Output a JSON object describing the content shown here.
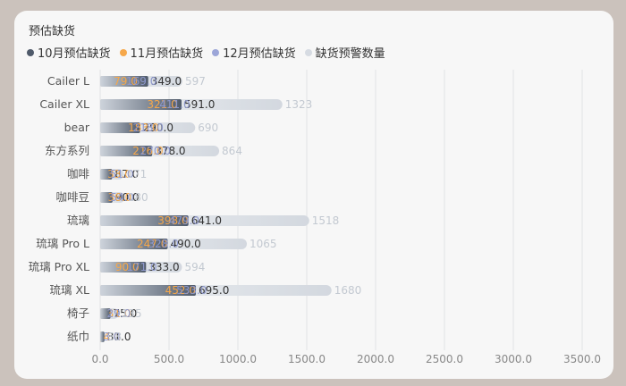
{
  "chart_data": {
    "type": "bar",
    "orientation": "horizontal",
    "title": "预估缺货",
    "categories": [
      "Cailer L",
      "Cailer XL",
      "bear",
      "东方系列",
      "咖啡",
      "咖啡豆",
      "琉璃",
      "琉璃 Pro L",
      "琉璃 Pro XL",
      "琉璃 XL",
      "椅子",
      "纸巾"
    ],
    "series": [
      {
        "name": "10月预估缺货",
        "color": "#4f5a6a",
        "values": [
          349,
          591,
          290,
          378,
          87,
          90,
          641,
          490,
          333,
          695,
          75,
          31
        ]
      },
      {
        "name": "11月预估缺货",
        "color": "#f6a84b",
        "values": [
          79,
          321,
          183,
          216,
          33,
          36,
          398,
          247,
          90,
          452,
          31,
          4
        ]
      },
      {
        "name": "12月预估缺货",
        "color": "#9ca6d8",
        "values": [
          169,
          411,
          218,
          270,
          51,
          54,
          479,
          328,
          171,
          533,
          29,
          3
        ]
      },
      {
        "name": "缺货预警数量",
        "color": "#d6dbe2",
        "values": [
          597,
          1323,
          690,
          864,
          171,
          180,
          1518,
          1065,
          594,
          1680,
          135,
          38
        ]
      }
    ],
    "xlim": [
      0,
      3500
    ],
    "x_ticks": [
      "0.0",
      "500.0",
      "1000.0",
      "1500.0",
      "2000.0",
      "2500.0",
      "3000.0",
      "3500.0"
    ],
    "grid": true,
    "legend_position": "top-left"
  }
}
